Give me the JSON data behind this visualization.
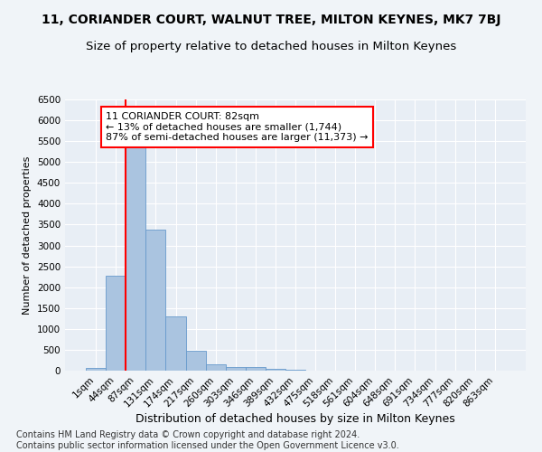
{
  "title": "11, CORIANDER COURT, WALNUT TREE, MILTON KEYNES, MK7 7BJ",
  "subtitle": "Size of property relative to detached houses in Milton Keynes",
  "xlabel": "Distribution of detached houses by size in Milton Keynes",
  "ylabel": "Number of detached properties",
  "bar_labels": [
    "1sqm",
    "44sqm",
    "87sqm",
    "131sqm",
    "174sqm",
    "217sqm",
    "260sqm",
    "303sqm",
    "346sqm",
    "389sqm",
    "432sqm",
    "475sqm",
    "518sqm",
    "561sqm",
    "604sqm",
    "648sqm",
    "691sqm",
    "734sqm",
    "777sqm",
    "820sqm",
    "863sqm"
  ],
  "bar_values": [
    75,
    2280,
    5440,
    3380,
    1300,
    480,
    160,
    90,
    80,
    35,
    20,
    10,
    5,
    3,
    2,
    1,
    1,
    1,
    1,
    0,
    0
  ],
  "bar_color": "#aac4e0",
  "bar_edge_color": "#6699cc",
  "vline_color": "red",
  "annotation_line1": "11 CORIANDER COURT: 82sqm",
  "annotation_line2": "← 13% of detached houses are smaller (1,744)",
  "annotation_line3": "87% of semi-detached houses are larger (11,373) →",
  "annotation_box_color": "white",
  "annotation_box_edge_color": "red",
  "ylim": [
    0,
    6500
  ],
  "yticks": [
    0,
    500,
    1000,
    1500,
    2000,
    2500,
    3000,
    3500,
    4000,
    4500,
    5000,
    5500,
    6000,
    6500
  ],
  "footer_text": "Contains HM Land Registry data © Crown copyright and database right 2024.\nContains public sector information licensed under the Open Government Licence v3.0.",
  "bg_color": "#e8eef5",
  "grid_color": "#ffffff",
  "fig_bg_color": "#f0f4f8",
  "title_fontsize": 10,
  "subtitle_fontsize": 9.5,
  "xlabel_fontsize": 9,
  "ylabel_fontsize": 8,
  "footer_fontsize": 7,
  "tick_fontsize": 7.5,
  "annot_fontsize": 8
}
